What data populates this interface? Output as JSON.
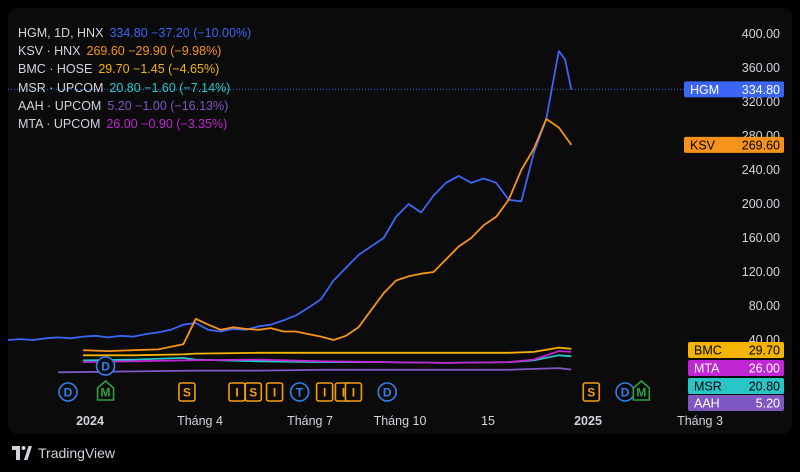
{
  "chart_data": {
    "type": "line",
    "y_scale": "linear",
    "y_ticks": [
      "400.00",
      "360.00",
      "320.00",
      "280.00",
      "240.00",
      "200.00",
      "160.00",
      "120.00",
      "80.00",
      "40.00"
    ],
    "x_ticks": [
      "2024",
      "Tháng 4",
      "Tháng 7",
      "Tháng 10",
      "15",
      "2025",
      "Tháng 3"
    ],
    "series": [
      {
        "name": "HGM",
        "header": "HGM, 1D, HNX",
        "last": "334.80",
        "change": "−37.20 (−10.00%)",
        "color": "#3b66f5",
        "values": [
          [
            0,
            40
          ],
          [
            10,
            41
          ],
          [
            20,
            40
          ],
          [
            30,
            42
          ],
          [
            40,
            43
          ],
          [
            50,
            42
          ],
          [
            60,
            44
          ],
          [
            70,
            45
          ],
          [
            80,
            43
          ],
          [
            90,
            45
          ],
          [
            100,
            44
          ],
          [
            110,
            47
          ],
          [
            120,
            49
          ],
          [
            130,
            52
          ],
          [
            140,
            58
          ],
          [
            150,
            60
          ],
          [
            160,
            52
          ],
          [
            170,
            50
          ],
          [
            180,
            53
          ],
          [
            190,
            52
          ],
          [
            200,
            56
          ],
          [
            210,
            58
          ],
          [
            220,
            63
          ],
          [
            230,
            69
          ],
          [
            240,
            78
          ],
          [
            250,
            88
          ],
          [
            260,
            110
          ],
          [
            270,
            125
          ],
          [
            280,
            140
          ],
          [
            290,
            150
          ],
          [
            300,
            160
          ],
          [
            310,
            185
          ],
          [
            320,
            200
          ],
          [
            330,
            190
          ],
          [
            340,
            210
          ],
          [
            350,
            225
          ],
          [
            360,
            233
          ],
          [
            370,
            225
          ],
          [
            380,
            230
          ],
          [
            390,
            225
          ],
          [
            400,
            205
          ],
          [
            410,
            203
          ],
          [
            420,
            260
          ],
          [
            430,
            300
          ],
          [
            440,
            380
          ],
          [
            445,
            370
          ],
          [
            450,
            334.8
          ]
        ]
      },
      {
        "name": "KSV",
        "header": "KSV · HNX",
        "last": "269.60",
        "change": "−29.90 (−9.98%)",
        "color": "#f7931a",
        "values": [
          [
            60,
            28
          ],
          [
            80,
            27
          ],
          [
            100,
            28
          ],
          [
            120,
            29
          ],
          [
            140,
            35
          ],
          [
            150,
            65
          ],
          [
            160,
            58
          ],
          [
            170,
            52
          ],
          [
            180,
            55
          ],
          [
            190,
            53
          ],
          [
            200,
            52
          ],
          [
            210,
            54
          ],
          [
            220,
            50
          ],
          [
            230,
            50
          ],
          [
            240,
            47
          ],
          [
            250,
            44
          ],
          [
            260,
            40
          ],
          [
            270,
            45
          ],
          [
            280,
            55
          ],
          [
            290,
            75
          ],
          [
            300,
            95
          ],
          [
            310,
            110
          ],
          [
            320,
            115
          ],
          [
            330,
            118
          ],
          [
            340,
            120
          ],
          [
            350,
            135
          ],
          [
            360,
            150
          ],
          [
            370,
            160
          ],
          [
            380,
            175
          ],
          [
            390,
            185
          ],
          [
            400,
            205
          ],
          [
            410,
            240
          ],
          [
            420,
            265
          ],
          [
            430,
            300
          ],
          [
            440,
            290
          ],
          [
            450,
            269.6
          ]
        ]
      },
      {
        "name": "BMC",
        "header": "BMC · HOSE",
        "last": "29.70",
        "change": "−1.45 (−4.65%)",
        "color": "#f5b400",
        "values": [
          [
            60,
            22
          ],
          [
            100,
            22
          ],
          [
            140,
            23
          ],
          [
            150,
            24
          ],
          [
            200,
            25
          ],
          [
            250,
            25
          ],
          [
            300,
            25
          ],
          [
            350,
            25
          ],
          [
            400,
            25
          ],
          [
            420,
            26
          ],
          [
            440,
            31
          ],
          [
            450,
            29.7
          ]
        ]
      },
      {
        "name": "MSR",
        "header": "MSR · UPCOM",
        "last": "20.80",
        "change": "−1.60 (−7.14%)",
        "color": "#28c6c6",
        "values": [
          [
            60,
            16
          ],
          [
            100,
            17
          ],
          [
            140,
            19
          ],
          [
            150,
            17
          ],
          [
            200,
            15
          ],
          [
            250,
            14
          ],
          [
            300,
            14
          ],
          [
            350,
            13
          ],
          [
            400,
            14
          ],
          [
            420,
            16
          ],
          [
            440,
            22
          ],
          [
            450,
            20.8
          ]
        ]
      },
      {
        "name": "AAH",
        "header": "AAH · UPCOM",
        "last": "5.20",
        "change": "−1.00 (−16.13%)",
        "color": "#7e57c2",
        "values": [
          [
            40,
            2
          ],
          [
            100,
            3
          ],
          [
            150,
            4
          ],
          [
            200,
            4
          ],
          [
            250,
            5
          ],
          [
            300,
            5
          ],
          [
            350,
            5
          ],
          [
            400,
            5
          ],
          [
            420,
            6
          ],
          [
            440,
            7
          ],
          [
            450,
            5.2
          ]
        ]
      },
      {
        "name": "MTA",
        "header": "MTA · UPCOM",
        "last": "26.00",
        "change": "−0.90 (−3.35%)",
        "color": "#c026d3",
        "values": [
          [
            60,
            14
          ],
          [
            100,
            15
          ],
          [
            140,
            16
          ],
          [
            200,
            17
          ],
          [
            250,
            15
          ],
          [
            300,
            14
          ],
          [
            350,
            13
          ],
          [
            400,
            14
          ],
          [
            420,
            17
          ],
          [
            440,
            27
          ],
          [
            450,
            26
          ]
        ]
      }
    ]
  },
  "markers": [
    {
      "letter": "D",
      "x": 0,
      "row": "bottom",
      "color": "#2f80ed"
    },
    {
      "letter": "D",
      "x": 30,
      "row": "top",
      "color": "#2f80ed"
    },
    {
      "letter": "M",
      "x": 30,
      "row": "bottom",
      "color": "#2ea043"
    },
    {
      "letter": "S",
      "x": 95,
      "row": "bottom",
      "color": "#f59e0b"
    },
    {
      "letter": "I",
      "x": 135,
      "row": "bottom",
      "color": "#f59e0b"
    },
    {
      "letter": "S",
      "x": 148,
      "row": "bottom",
      "color": "#f59e0b"
    },
    {
      "letter": "I",
      "x": 165,
      "row": "bottom",
      "color": "#f59e0b"
    },
    {
      "letter": "T",
      "x": 185,
      "row": "bottom",
      "color": "#2f80ed"
    },
    {
      "letter": "I",
      "x": 205,
      "row": "bottom",
      "color": "#f59e0b"
    },
    {
      "letter": "I",
      "x": 220,
      "row": "bottom",
      "color": "#f59e0b"
    },
    {
      "letter": "I",
      "x": 228,
      "row": "bottom",
      "color": "#f59e0b"
    },
    {
      "letter": "D",
      "x": 255,
      "row": "bottom",
      "color": "#2f80ed"
    },
    {
      "letter": "S",
      "x": 418,
      "row": "bottom",
      "color": "#f59e0b"
    },
    {
      "letter": "D",
      "x": 445,
      "row": "bottom",
      "color": "#2f80ed"
    },
    {
      "letter": "M",
      "x": 458,
      "row": "bottom",
      "color": "#2ea043"
    }
  ],
  "footer": {
    "brand": "TradingView"
  }
}
